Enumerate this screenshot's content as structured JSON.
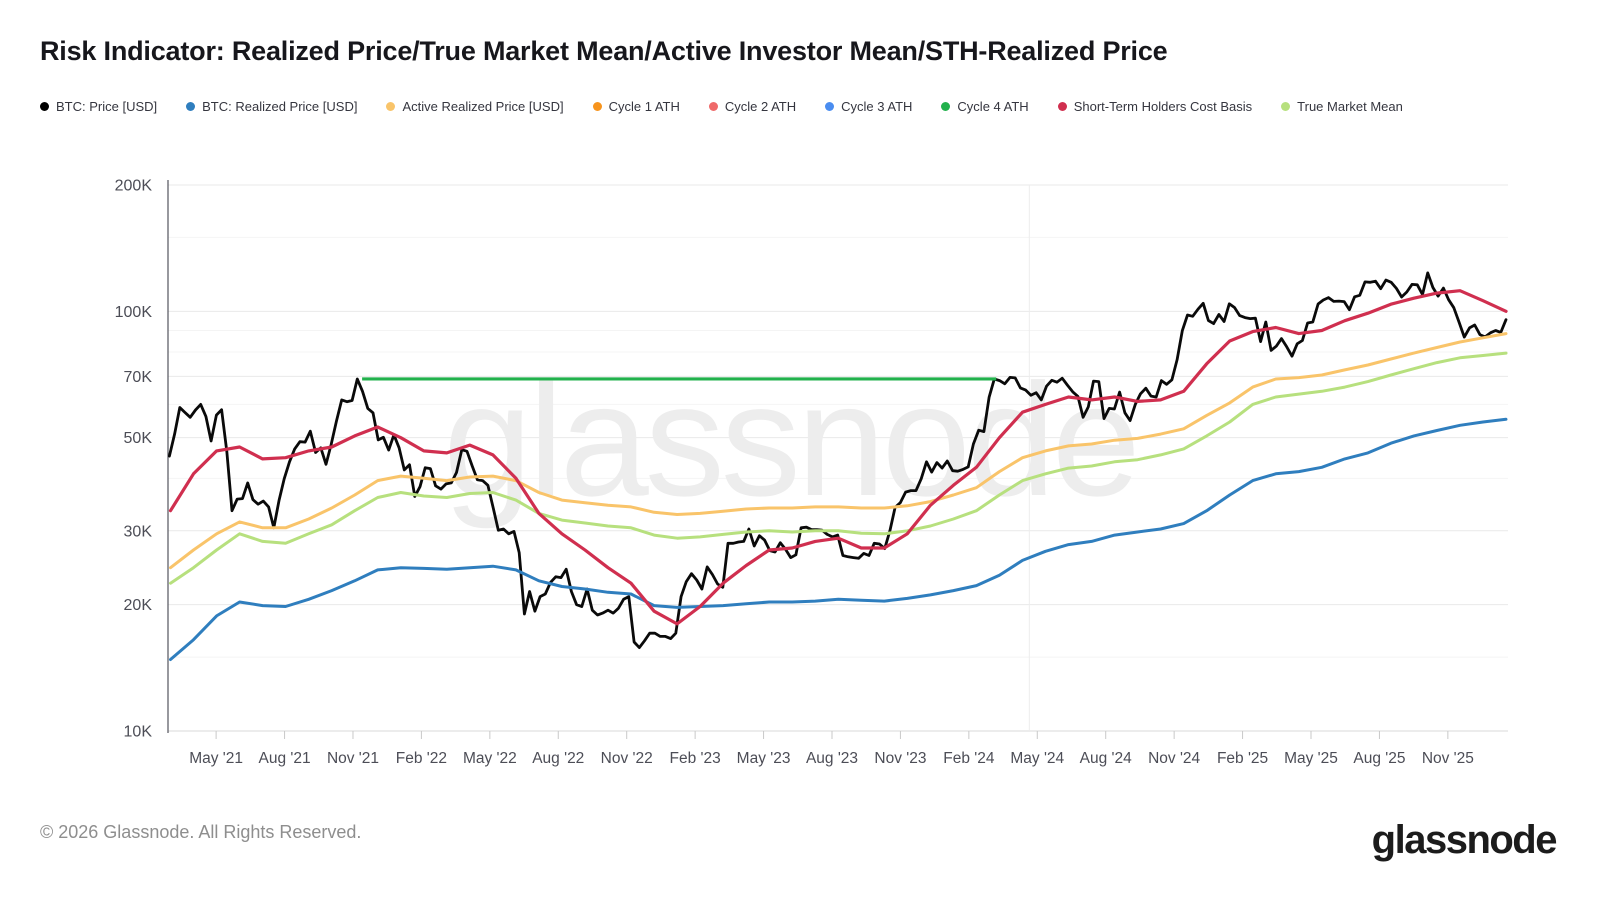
{
  "header": {
    "title": "Risk Indicator: Realized Price/True Market Mean/Active Investor Mean/STH-Realized Price"
  },
  "legend": {
    "items": [
      {
        "label": "BTC: Price [USD]",
        "color": "#000000"
      },
      {
        "label": "BTC: Realized Price [USD]",
        "color": "#2f7ebe"
      },
      {
        "label": "Active Realized Price [USD]",
        "color": "#f9c46a"
      },
      {
        "label": "Cycle 1 ATH",
        "color": "#f7941d"
      },
      {
        "label": "Cycle 2 ATH",
        "color": "#ef6a6a"
      },
      {
        "label": "Cycle 3 ATH",
        "color": "#4a8df0"
      },
      {
        "label": "Cycle 4 ATH",
        "color": "#22b14c"
      },
      {
        "label": "Short-Term Holders Cost Basis",
        "color": "#d02f4f"
      },
      {
        "label": "True Market Mean",
        "color": "#b7e07e"
      }
    ]
  },
  "watermark": "glassnode",
  "footer": {
    "copyright": "© 2026 Glassnode. All Rights Reserved.",
    "brand": "glassnode"
  },
  "chart_data": {
    "type": "line",
    "title": "Risk Indicator: Realized Price/True Market Mean/Active Investor Mean/STH-Realized Price",
    "x_unit": "months since 2021-03-01",
    "y_unit": "USD (thousands)",
    "y_axis": {
      "scale": "log",
      "range_k": [
        10,
        200
      ],
      "major_ticks_k": [
        200,
        100,
        70,
        50,
        30,
        20,
        10
      ],
      "tick_labels": [
        "200K",
        "100K",
        "70K",
        "50K",
        "30K",
        "20K",
        "10K"
      ],
      "minor_ticks_k": [
        150,
        90,
        80,
        60,
        40,
        15
      ]
    },
    "x_axis": {
      "labels": [
        "May '21",
        "Aug '21",
        "Nov '21",
        "Feb '22",
        "May '22",
        "Aug '22",
        "Nov '22",
        "Feb '23",
        "May '23",
        "Aug '23",
        "Nov '23",
        "Feb '24",
        "May '24",
        "Aug '24",
        "Nov '24",
        "Feb '25",
        "May '25",
        "Aug '25",
        "Nov '25"
      ],
      "label_months": [
        2,
        5,
        8,
        11,
        14,
        17,
        20,
        23,
        26,
        29,
        32,
        35,
        38,
        41,
        44,
        47,
        50,
        53,
        56
      ],
      "range_months": [
        -0.1,
        58.7
      ],
      "event_vline_month": 37.65
    },
    "series": [
      {
        "name": "BTC: Price [USD]",
        "color": "#0a0a0a",
        "width": 2.8,
        "start": -0.05,
        "end": 58.55,
        "values_k": [
          45.2,
          51.0,
          59.0,
          57.4,
          55.9,
          58.2,
          60.0,
          56.2,
          49.1,
          56.6,
          58.3,
          46.4,
          33.5,
          35.7,
          35.8,
          39.0,
          35.6,
          34.7,
          35.3,
          34.2,
          30.5,
          35.4,
          39.9,
          43.8,
          47.0,
          48.9,
          48.8,
          51.8,
          46.1,
          47.3,
          43.2,
          48.2,
          54.7,
          61.5,
          60.9,
          61.3,
          69.0,
          64.5,
          58.7,
          57.3,
          49.4,
          50.1,
          46.7,
          50.8,
          47.3,
          41.9,
          43.1,
          36.2,
          38.2,
          42.4,
          42.2,
          38.4,
          37.7,
          38.8,
          39.0,
          41.3,
          46.8,
          46.4,
          42.8,
          39.7,
          39.5,
          38.5,
          34.1,
          30.1,
          30.3,
          29.5,
          29.9,
          26.6,
          19.0,
          21.5,
          19.3,
          20.9,
          21.2,
          22.6,
          23.3,
          23.2,
          24.3,
          21.5,
          20.0,
          19.8,
          21.8,
          19.4,
          18.9,
          19.1,
          19.4,
          19.1,
          19.6,
          20.6,
          20.9,
          16.3,
          15.8,
          16.4,
          17.1,
          17.1,
          16.8,
          16.8,
          16.6,
          17.1,
          20.9,
          22.7,
          23.7,
          22.9,
          21.8,
          24.6,
          23.6,
          22.4,
          22.0,
          28.0,
          28.0,
          28.2,
          28.3,
          30.3,
          27.6,
          29.2,
          28.5,
          26.9,
          26.7,
          28.1,
          27.1,
          25.9,
          26.3,
          30.5,
          30.6,
          30.2,
          30.2,
          30.1,
          29.4,
          29.0,
          29.3,
          26.2,
          26.0,
          25.9,
          25.8,
          26.5,
          26.2,
          28.0,
          27.9,
          27.2,
          30.0,
          34.1,
          35.0,
          37.1,
          37.4,
          37.4,
          39.9,
          43.8,
          41.4,
          43.6,
          42.3,
          44.0,
          41.7,
          41.6,
          42.0,
          42.6,
          48.3,
          52.1,
          51.7,
          62.4,
          69.0,
          68.4,
          67.2,
          69.6,
          69.4,
          65.7,
          64.9,
          63.1,
          64.0,
          61.5,
          66.3,
          68.5,
          67.8,
          69.3,
          66.7,
          64.3,
          62.7,
          55.9,
          59.2,
          68.2,
          68.0,
          55.5,
          58.7,
          58.5,
          64.2,
          57.3,
          54.9,
          60.0,
          63.6,
          65.6,
          62.8,
          62.5,
          68.4,
          67.0,
          68.7,
          76.7,
          89.9,
          98.0,
          97.3,
          101.2,
          104.5,
          95.1,
          93.5,
          98.3,
          94.6,
          104.2,
          102.1,
          97.7,
          96.6,
          96.1,
          96.3,
          84.7,
          94.3,
          80.7,
          82.6,
          86.1,
          82.3,
          78.2,
          83.7,
          85.2,
          93.8,
          94.3,
          104.1,
          106.4,
          107.8,
          105.6,
          105.8,
          105.5,
          100.9,
          108.3,
          109.2,
          117.5,
          117.3,
          118.0,
          113.2,
          118.7,
          117.3,
          113.4,
          108.2,
          111.2,
          115.9,
          115.7,
          109.6,
          123.5,
          114.0,
          108.7,
          113.6,
          106.6,
          102.0,
          94.3,
          86.8,
          91.3,
          92.8,
          88.0,
          86.9,
          88.9,
          90.0,
          89.1,
          95.5
        ]
      },
      {
        "name": "BTC: Realized Price [USD]",
        "color": "#2f7ebe",
        "width": 3,
        "start": 0,
        "end": 58.55,
        "values_k": [
          14.8,
          16.5,
          18.8,
          20.3,
          19.9,
          19.8,
          20.6,
          21.6,
          22.8,
          24.2,
          24.5,
          24.4,
          24.3,
          24.5,
          24.7,
          24.2,
          22.8,
          22.1,
          21.8,
          21.4,
          21.2,
          19.9,
          19.7,
          19.8,
          19.9,
          20.1,
          20.3,
          20.3,
          20.4,
          20.6,
          20.5,
          20.4,
          20.7,
          21.1,
          21.6,
          22.2,
          23.5,
          25.5,
          26.8,
          27.8,
          28.3,
          29.3,
          29.8,
          30.3,
          31.2,
          33.5,
          36.5,
          39.5,
          41.0,
          41.5,
          42.5,
          44.5,
          46.0,
          48.5,
          50.5,
          52.0,
          53.5,
          54.5,
          55.3
        ]
      },
      {
        "name": "True Market Mean",
        "color": "#b7e07e",
        "width": 3,
        "start": 0,
        "end": 58.55,
        "values_k": [
          22.5,
          24.5,
          27.0,
          29.5,
          28.3,
          28.0,
          29.5,
          31.0,
          33.5,
          36.0,
          37.0,
          36.3,
          36.0,
          36.8,
          37.0,
          35.5,
          33.0,
          31.8,
          31.3,
          30.8,
          30.5,
          29.3,
          28.8,
          29.0,
          29.4,
          29.8,
          30.0,
          29.8,
          30.0,
          30.0,
          29.6,
          29.5,
          30.0,
          30.8,
          32.0,
          33.5,
          36.5,
          39.5,
          41.0,
          42.3,
          42.8,
          43.8,
          44.3,
          45.5,
          47.0,
          50.5,
          54.5,
          60.0,
          62.5,
          63.5,
          64.5,
          66.0,
          68.0,
          70.5,
          73.0,
          75.5,
          77.5,
          78.5,
          79.5
        ]
      },
      {
        "name": "Active Realized Price [USD]",
        "color": "#f9c46a",
        "width": 3,
        "start": 0,
        "end": 58.55,
        "values_k": [
          24.5,
          27.0,
          29.5,
          31.5,
          30.5,
          30.5,
          32.0,
          34.0,
          36.5,
          39.5,
          40.5,
          40.0,
          39.5,
          40.3,
          40.5,
          39.5,
          37.0,
          35.5,
          35.0,
          34.5,
          34.2,
          33.2,
          32.8,
          33.0,
          33.4,
          33.8,
          34.0,
          34.0,
          34.2,
          34.2,
          34.0,
          34.0,
          34.4,
          35.2,
          36.5,
          38.0,
          41.5,
          44.8,
          46.5,
          47.8,
          48.3,
          49.3,
          49.8,
          51.0,
          52.5,
          56.5,
          60.5,
          66.0,
          69.0,
          69.5,
          70.5,
          72.5,
          74.5,
          77.0,
          79.5,
          82.0,
          84.5,
          86.5,
          88.5
        ]
      },
      {
        "name": "Short-Term Holders Cost Basis",
        "color": "#d02f4f",
        "width": 3.2,
        "start": 0,
        "end": 58.55,
        "values_k": [
          33.5,
          41.0,
          46.5,
          47.5,
          44.5,
          44.8,
          46.5,
          47.5,
          50.5,
          53.0,
          50.0,
          46.5,
          46.0,
          48.0,
          45.5,
          40.0,
          33.0,
          29.5,
          27.0,
          24.5,
          22.5,
          19.3,
          18.0,
          19.8,
          22.5,
          24.8,
          27.0,
          27.3,
          28.3,
          28.8,
          27.3,
          27.3,
          29.5,
          34.5,
          38.5,
          42.5,
          50.0,
          57.5,
          60.0,
          62.5,
          61.5,
          62.5,
          61.0,
          61.5,
          64.5,
          75.0,
          85.0,
          89.5,
          91.5,
          88.5,
          90.0,
          95.0,
          99.0,
          104.0,
          107.5,
          110.5,
          112.0,
          106.0,
          100.0
        ]
      },
      {
        "name": "Cycle 4 ATH",
        "color": "#22b14c",
        "width": 3.2,
        "type": "hline",
        "value_k": 69.0,
        "from_month": 8.4,
        "to_month": 36.2
      }
    ],
    "hidden_series": [
      "Cycle 1 ATH",
      "Cycle 2 ATH",
      "Cycle 3 ATH"
    ]
  }
}
